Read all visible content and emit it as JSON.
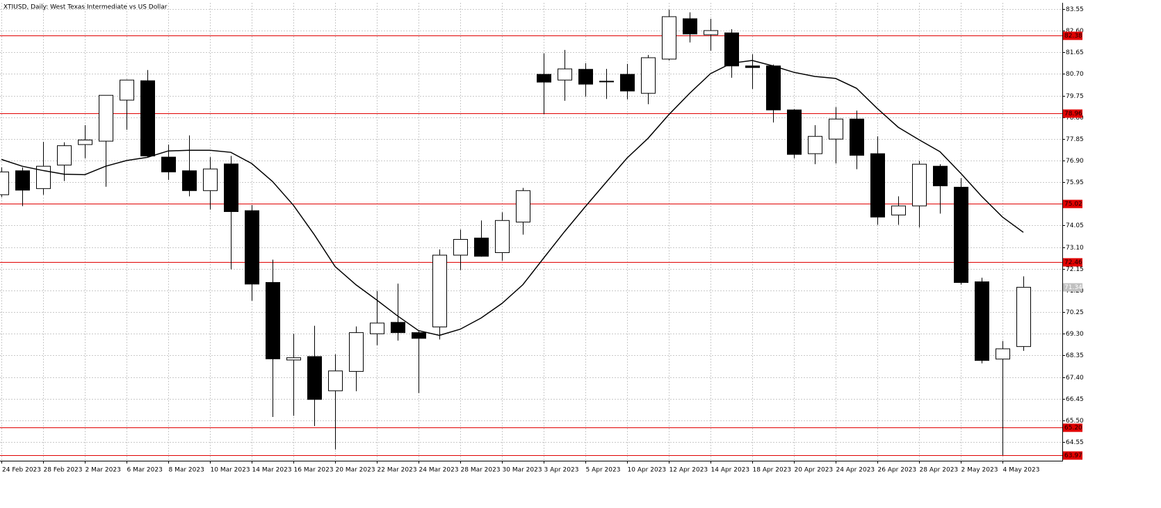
{
  "chart_data": {
    "type": "candlestick",
    "title": "XTIUSD, Daily:  West Texas Intermediate vs US Dollar",
    "categories": [
      "24 Feb 2023",
      null,
      "28 Feb 2023",
      null,
      "2 Mar 2023",
      null,
      "6 Mar 2023",
      null,
      "8 Mar 2023",
      null,
      "10 Mar 2023",
      null,
      "14 Mar 2023",
      null,
      "16 Mar 2023",
      null,
      "20 Mar 2023",
      null,
      "22 Mar 2023",
      null,
      "24 Mar 2023",
      null,
      "28 Mar 2023",
      null,
      "30 Mar 2023",
      null,
      "3 Apr 2023",
      null,
      "5 Apr 2023",
      null,
      "10 Apr 2023",
      null,
      "12 Apr 2023",
      null,
      "14 Apr 2023",
      null,
      "18 Apr 2023",
      null,
      "20 Apr 2023",
      null,
      "24 Apr 2023",
      null,
      "26 Apr 2023",
      null,
      "28 Apr 2023",
      null,
      "2 May 2023",
      null,
      "4 May 2023",
      null
    ],
    "open": [
      75.4,
      76.45,
      75.67,
      76.7,
      77.6,
      77.75,
      79.55,
      80.4,
      77.05,
      76.45,
      75.58,
      76.75,
      74.7,
      71.55,
      68.15,
      68.3,
      66.8,
      67.65,
      69.3,
      69.8,
      69.35,
      69.6,
      72.75,
      73.5,
      72.86,
      74.2,
      80.68,
      80.43,
      80.9,
      80.38,
      80.68,
      79.85,
      81.35,
      83.12,
      82.42,
      82.5,
      81.05,
      81.05,
      79.12,
      77.2,
      77.84,
      78.72,
      77.2,
      74.51,
      74.91,
      76.65,
      75.73,
      71.58,
      68.19,
      68.74
    ],
    "high": [
      76.6,
      76.6,
      77.72,
      77.7,
      78.45,
      79.76,
      80.45,
      80.87,
      77.6,
      78.0,
      77.05,
      77.1,
      74.95,
      72.55,
      69.3,
      69.65,
      68.4,
      69.62,
      71.18,
      71.5,
      69.45,
      73.0,
      73.87,
      74.27,
      74.63,
      75.7,
      81.6,
      81.75,
      81.17,
      80.92,
      81.14,
      81.53,
      83.52,
      83.4,
      83.12,
      82.66,
      81.56,
      81.11,
      79.15,
      78.45,
      79.24,
      79.09,
      77.96,
      75.33,
      76.89,
      76.74,
      76.13,
      71.76,
      68.98,
      71.82
    ],
    "low": [
      75.3,
      74.9,
      75.4,
      76.0,
      77.0,
      75.75,
      78.25,
      77.05,
      76.05,
      75.33,
      74.75,
      72.13,
      70.75,
      65.65,
      65.7,
      65.25,
      64.22,
      66.78,
      68.8,
      69.0,
      66.7,
      69.05,
      72.1,
      72.68,
      72.5,
      73.65,
      78.94,
      79.52,
      79.7,
      79.6,
      79.58,
      79.37,
      81.29,
      82.08,
      81.72,
      80.53,
      80.04,
      78.57,
      77.0,
      76.74,
      76.77,
      76.52,
      74.08,
      74.08,
      73.96,
      74.57,
      71.46,
      68.0,
      63.97,
      68.55
    ],
    "close": [
      76.4,
      75.6,
      76.65,
      77.55,
      77.8,
      79.76,
      80.43,
      77.1,
      76.4,
      75.58,
      76.53,
      74.66,
      71.48,
      68.2,
      68.25,
      66.42,
      67.67,
      69.35,
      69.77,
      69.35,
      69.1,
      72.75,
      73.44,
      72.7,
      74.27,
      75.58,
      80.34,
      80.92,
      80.25,
      80.36,
      79.95,
      81.41,
      83.21,
      82.45,
      82.6,
      81.05,
      80.98,
      79.12,
      77.17,
      77.96,
      78.72,
      77.13,
      74.42,
      74.91,
      76.74,
      75.79,
      71.55,
      68.13,
      68.64,
      71.34
    ],
    "moving_average": {
      "color": "#000000",
      "values": [
        76.95,
        76.65,
        76.46,
        76.3,
        76.28,
        76.65,
        76.9,
        77.04,
        77.32,
        77.35,
        77.35,
        77.26,
        76.77,
        75.98,
        74.94,
        73.65,
        72.25,
        71.45,
        70.78,
        70.08,
        69.44,
        69.23,
        69.5,
        69.99,
        70.63,
        71.45,
        72.62,
        73.78,
        74.88,
        75.95,
        77.01,
        77.87,
        78.91,
        79.85,
        80.71,
        81.17,
        81.29,
        81.05,
        80.77,
        80.59,
        80.5,
        80.07,
        79.18,
        78.36,
        77.81,
        77.29,
        76.34,
        75.33,
        74.42,
        73.75
      ]
    },
    "up_color": "#ffffff",
    "down_color": "#000000",
    "level_color": "#e00000",
    "levels": [
      82.38,
      78.96,
      75.02,
      72.46,
      {
        "value": 65.2,
        "label": "65.20"
      },
      63.97
    ],
    "ylim": [
      63.73,
      83.82
    ],
    "yticks": [
      83.55,
      {
        "value": 82.6,
        "label": "82.60"
      },
      81.65,
      {
        "value": 80.7,
        "label": "80.70"
      },
      79.75,
      {
        "value": 78.8,
        "label": "78.80"
      },
      77.85,
      {
        "value": 76.9,
        "label": "76.90"
      },
      75.95,
      74.05,
      {
        "value": 73.1,
        "label": "73.10"
      },
      72.15,
      {
        "value": 71.2,
        "label": "71.20"
      },
      70.25,
      {
        "value": 69.3,
        "label": "69.30"
      },
      68.35,
      {
        "value": 67.4,
        "label": "67.40"
      },
      66.45,
      {
        "value": 65.5,
        "label": "65.50"
      },
      64.55
    ],
    "grid": true
  }
}
